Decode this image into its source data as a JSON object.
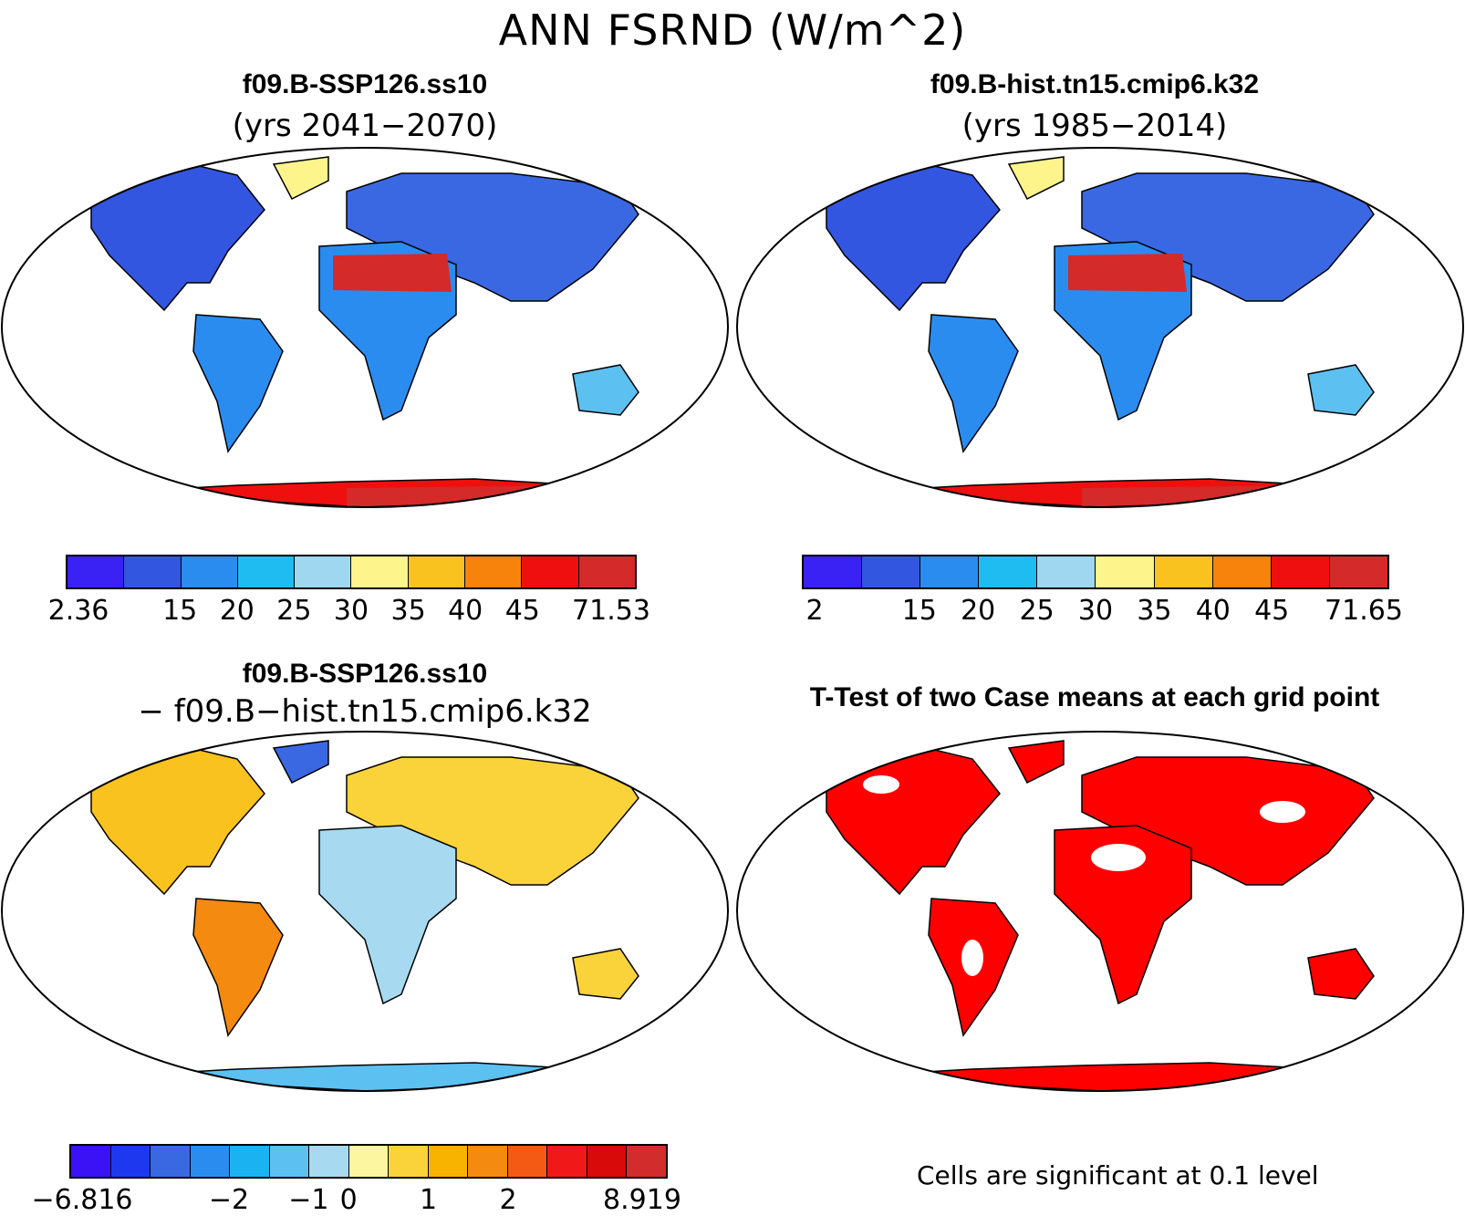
{
  "title": "ANN FSRND (W/m^2)",
  "panels": {
    "top_left": {
      "case": "f09.B-SSP126.ss10",
      "years": "(yrs 2041−2070)"
    },
    "top_right": {
      "case": "f09.B-hist.tn15.cmip6.k32",
      "years": "(yrs 1985−2014)"
    },
    "bottom_left": {
      "case": "f09.B-SSP126.ss10",
      "minus": "− f09.B−hist.tn15.cmip6.k32"
    },
    "bottom_right": {
      "title": "T-Test of two Case means at each grid point",
      "note": "Cells are significant at 0.1 level"
    }
  },
  "colorbars": {
    "top_left": {
      "colors": [
        "#3a22f5",
        "#3356e0",
        "#2b8cf0",
        "#1ebcf0",
        "#9fd6f0",
        "#fdf48c",
        "#f9c21e",
        "#f7820c",
        "#ef0f0f",
        "#d42a2a"
      ],
      "labels": [
        "2.36",
        "15",
        "20",
        "25",
        "30",
        "35",
        "40",
        "45",
        "71.53"
      ]
    },
    "top_right": {
      "colors": [
        "#3a22f5",
        "#3356e0",
        "#2b8cf0",
        "#1ebcf0",
        "#9fd6f0",
        "#fdf48c",
        "#f9c21e",
        "#f7820c",
        "#ef0f0f",
        "#d42a2a"
      ],
      "labels": [
        "2",
        "15",
        "20",
        "25",
        "30",
        "35",
        "40",
        "45",
        "71.65"
      ]
    },
    "bottom_left": {
      "colors": [
        "#3a12f5",
        "#1e38f0",
        "#3a68e2",
        "#2b8cf0",
        "#1ab2f0",
        "#5cc0f0",
        "#a7daf0",
        "#fdf6a0",
        "#fad23a",
        "#f8b200",
        "#f58a10",
        "#f55a14",
        "#f01818",
        "#d80a0a",
        "#d22c2c"
      ],
      "labels": [
        "−6.816",
        "−2",
        "−1",
        "0",
        "1",
        "2",
        "8.919"
      ]
    }
  },
  "legend_colors": {
    "significant": "#ff0000",
    "ocean": "#ffffff",
    "coast": "#000000"
  }
}
